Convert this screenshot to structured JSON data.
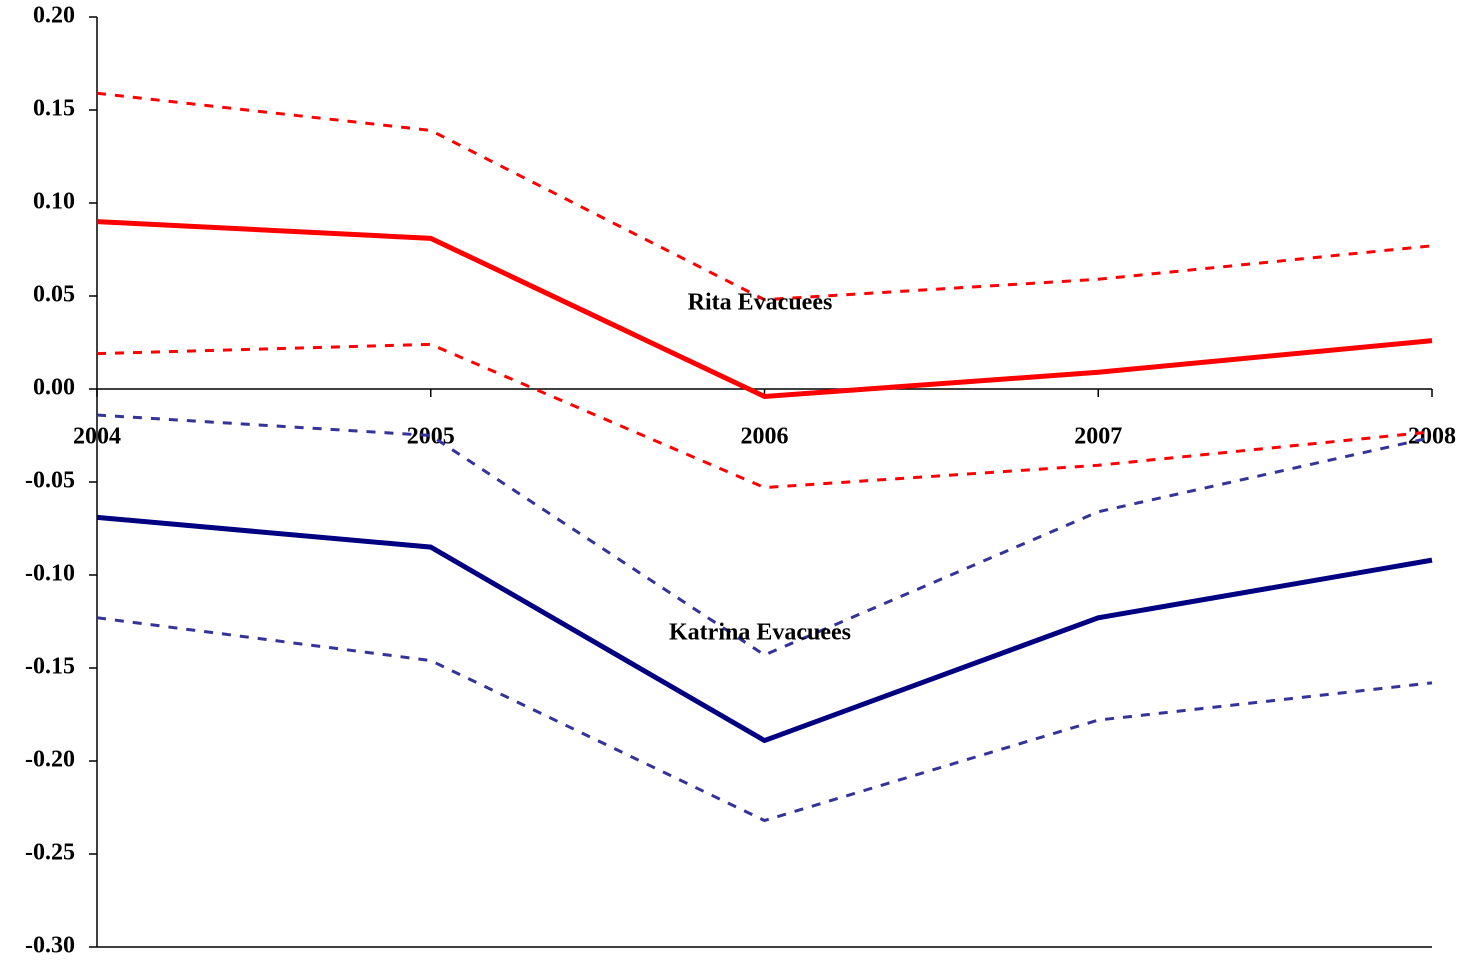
{
  "chart_data": {
    "type": "line",
    "x": [
      2004,
      2005,
      2006,
      2007,
      2008
    ],
    "xlim": [
      2004,
      2008
    ],
    "xticks": [
      2004,
      2005,
      2006,
      2007,
      2008
    ],
    "ylim": [
      -0.3,
      0.2
    ],
    "yticks": [
      {
        "value": -0.3,
        "label": "-0.30"
      },
      {
        "value": -0.25,
        "label": "-0.25"
      },
      {
        "value": -0.2,
        "label": "-0.20"
      },
      {
        "value": -0.15,
        "label": "-0.15"
      },
      {
        "value": -0.1,
        "label": "-0.10"
      },
      {
        "value": -0.05,
        "label": "-0.05"
      },
      {
        "value": 0,
        "label": "0.00"
      },
      {
        "value": 0.05,
        "label": "0.05"
      },
      {
        "value": 0.1,
        "label": "0.10"
      },
      {
        "value": 0.15,
        "label": "0.15"
      },
      {
        "value": 0.2,
        "label": "0.20"
      }
    ],
    "grid": false,
    "series": [
      {
        "color": "#ff0000",
        "style": "solid",
        "values": [
          0.09,
          0.081,
          -0.004,
          0.009,
          0.026
        ]
      },
      {
        "color": "#ff0000",
        "style": "dashed",
        "values": [
          0.159,
          0.139,
          0.048,
          0.059,
          0.077
        ]
      },
      {
        "color": "#ff0000",
        "style": "dashed",
        "values": [
          0.019,
          0.024,
          -0.053,
          -0.041,
          -0.023
        ]
      },
      {
        "color": "#000080",
        "style": "solid",
        "values": [
          -0.069,
          -0.085,
          -0.189,
          -0.123,
          -0.092
        ]
      },
      {
        "color": "#333399",
        "style": "dashed",
        "values": [
          -0.014,
          -0.025,
          -0.143,
          -0.066,
          -0.026
        ]
      },
      {
        "color": "#333399",
        "style": "dashed",
        "values": [
          -0.123,
          -0.146,
          -0.232,
          -0.178,
          -0.158
        ]
      }
    ],
    "annotations": [
      "Rita Evacuees",
      "Katrina Evacuees"
    ]
  }
}
